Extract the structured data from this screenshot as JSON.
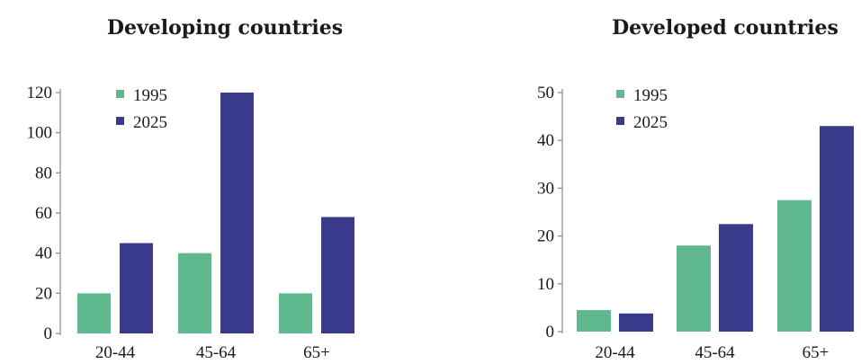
{
  "chart_data": [
    {
      "type": "bar",
      "title": "Developing countries",
      "categories": [
        "20-44",
        "45-64",
        "65+"
      ],
      "series": [
        {
          "name": "1995",
          "values": [
            20,
            40,
            20
          ],
          "color": "#5fb88e"
        },
        {
          "name": "2025",
          "values": [
            45,
            120,
            58
          ],
          "color": "#3a3a8c"
        }
      ],
      "yticks": [
        0,
        20,
        40,
        60,
        80,
        100,
        120
      ],
      "ytick_labels": [
        "0",
        "20",
        "40",
        "60",
        "80",
        "100",
        "120"
      ],
      "ylim": [
        0,
        120
      ],
      "legend": "top-left"
    },
    {
      "type": "bar",
      "title": "Developed countries",
      "categories": [
        "20-44",
        "45-64",
        "65+"
      ],
      "series": [
        {
          "name": "1995",
          "values": [
            4.5,
            18,
            27.5
          ],
          "color": "#5fb88e"
        },
        {
          "name": "2025",
          "values": [
            3.8,
            22.5,
            43
          ],
          "color": "#3a3a8c"
        }
      ],
      "yticks": [
        0,
        10,
        20,
        30,
        40,
        50
      ],
      "ytick_labels": [
        "0",
        "10",
        "20",
        "30",
        "40",
        "50"
      ],
      "ylim": [
        0,
        50
      ],
      "legend": "top-left"
    }
  ]
}
